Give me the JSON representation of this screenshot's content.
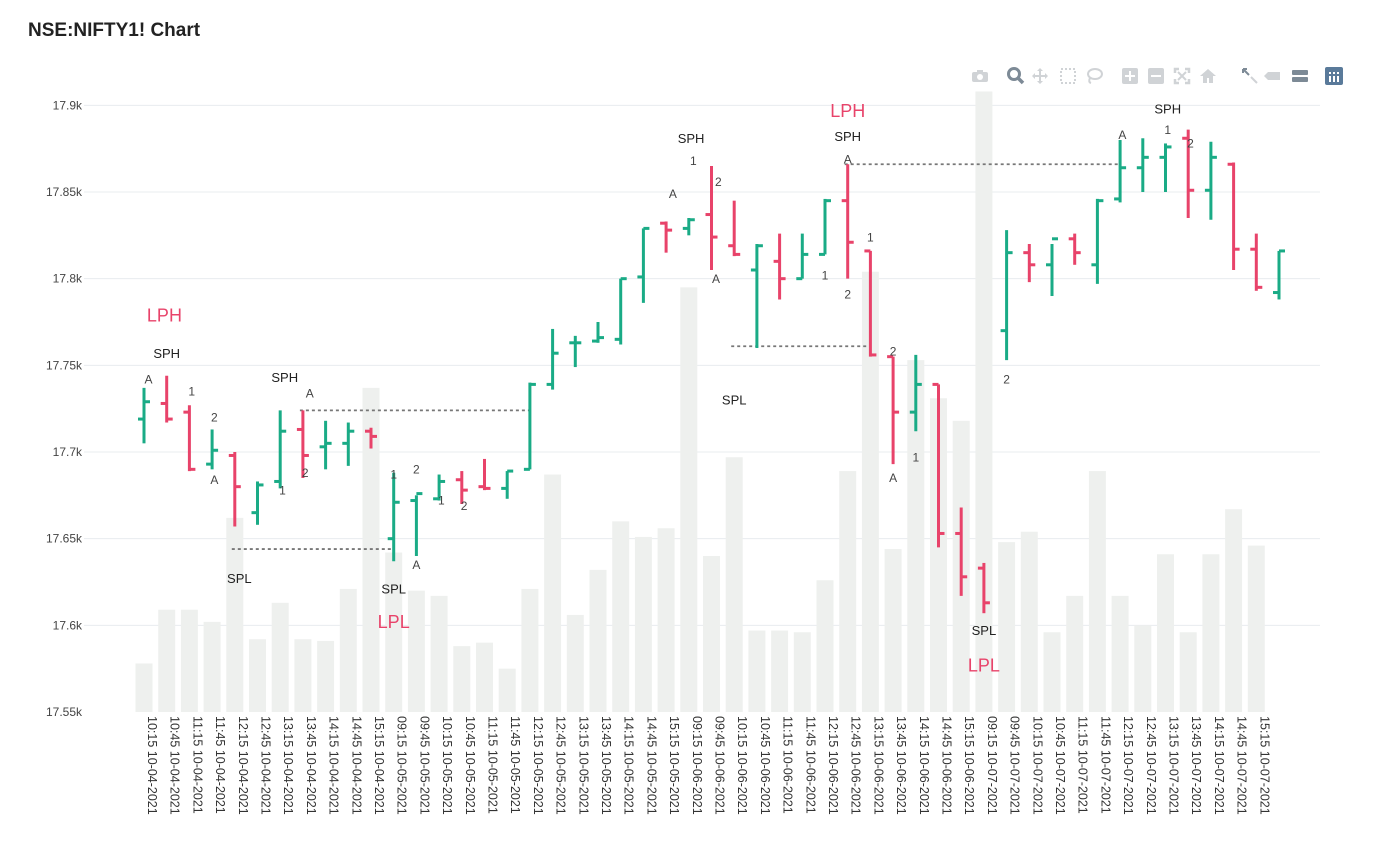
{
  "page": {
    "title": "NSE:NIFTY1! Chart"
  },
  "toolbar": {
    "buttons": [
      {
        "name": "camera-icon",
        "label": "Download plot as png"
      },
      {
        "name": "zoom-icon",
        "label": "Zoom"
      },
      {
        "name": "pan-icon",
        "label": "Pan"
      },
      {
        "name": "box-select-icon",
        "label": "Box Select"
      },
      {
        "name": "lasso-select-icon",
        "label": "Lasso Select"
      },
      {
        "name": "zoom-in-icon",
        "label": "Zoom in"
      },
      {
        "name": "zoom-out-icon",
        "label": "Zoom out"
      },
      {
        "name": "autoscale-icon",
        "label": "Autoscale"
      },
      {
        "name": "reset-axes-icon",
        "label": "Reset axes"
      },
      {
        "name": "spike-lines-icon",
        "label": "Toggle Spike Lines"
      },
      {
        "name": "hover-closest-icon",
        "label": "Show closest data on hover"
      },
      {
        "name": "hover-compare-icon",
        "label": "Compare data on hover"
      },
      {
        "name": "plotly-logo-icon",
        "label": "Produced with Plotly"
      }
    ]
  },
  "chart_data": {
    "type": "ohlc",
    "title": "NSE:NIFTY1! Chart",
    "ylim": [
      17550,
      17910
    ],
    "yticks": [
      17550,
      17600,
      17650,
      17700,
      17750,
      17800,
      17850,
      17900
    ],
    "ytick_labels": [
      "17.55k",
      "17.6k",
      "17.65k",
      "17.7k",
      "17.75k",
      "17.8k",
      "17.85k",
      "17.9k"
    ],
    "grid": true,
    "colors": {
      "up": "#1aab86",
      "down": "#e8436a",
      "volume": "#eef0ee",
      "grid": "#e8ecef",
      "marker_red": "#e8436a",
      "marker_text": "#222222",
      "ref_line": "#777777"
    },
    "categories": [
      "10:15 10-04-2021",
      "10:45 10-04-2021",
      "11:15 10-04-2021",
      "11:45 10-04-2021",
      "12:15 10-04-2021",
      "12:45 10-04-2021",
      "13:15 10-04-2021",
      "13:45 10-04-2021",
      "14:15 10-04-2021",
      "14:45 10-04-2021",
      "15:15 10-04-2021",
      "09:15 10-05-2021",
      "09:45 10-05-2021",
      "10:15 10-05-2021",
      "10:45 10-05-2021",
      "11:15 10-05-2021",
      "11:45 10-05-2021",
      "12:15 10-05-2021",
      "12:45 10-05-2021",
      "13:15 10-05-2021",
      "13:45 10-05-2021",
      "14:15 10-05-2021",
      "14:45 10-05-2021",
      "15:15 10-05-2021",
      "09:15 10-06-2021",
      "09:45 10-06-2021",
      "10:15 10-06-2021",
      "10:45 10-06-2021",
      "11:15 10-06-2021",
      "11:45 10-06-2021",
      "12:15 10-06-2021",
      "12:45 10-06-2021",
      "13:15 10-06-2021",
      "13:45 10-06-2021",
      "14:15 10-06-2021",
      "14:45 10-06-2021",
      "15:15 10-06-2021",
      "09:15 10-07-2021",
      "09:45 10-07-2021",
      "10:15 10-07-2021",
      "10:45 10-07-2021",
      "11:15 10-07-2021",
      "11:45 10-07-2021",
      "12:15 10-07-2021",
      "12:45 10-07-2021",
      "13:15 10-07-2021",
      "13:45 10-07-2021",
      "14:15 10-07-2021",
      "14:45 10-07-2021",
      "15:15 10-07-2021"
    ],
    "ohlc": [
      [
        17719,
        17737,
        17705,
        17729
      ],
      [
        17728,
        17744,
        17717,
        17719
      ],
      [
        17723,
        17727,
        17689,
        17690
      ],
      [
        17693,
        17713,
        17690,
        17701
      ],
      [
        17698,
        17700,
        17657,
        17680
      ],
      [
        17665,
        17683,
        17658,
        17681
      ],
      [
        17683,
        17724,
        17679,
        17712
      ],
      [
        17713,
        17724,
        17685,
        17698
      ],
      [
        17703,
        17718,
        17690,
        17705
      ],
      [
        17705,
        17717,
        17692,
        17712
      ],
      [
        17712,
        17714,
        17702,
        17709
      ],
      [
        17650,
        17688,
        17637,
        17671
      ],
      [
        17672,
        17675,
        17640,
        17676
      ],
      [
        17673,
        17687,
        17672,
        17683
      ],
      [
        17684,
        17689,
        17670,
        17678
      ],
      [
        17680,
        17696,
        17678,
        17679
      ],
      [
        17679,
        17689,
        17673,
        17689
      ],
      [
        17690,
        17740,
        17690,
        17739
      ],
      [
        17739,
        17771,
        17736,
        17757
      ],
      [
        17763,
        17767,
        17749,
        17763
      ],
      [
        17764,
        17775,
        17763,
        17766
      ],
      [
        17765,
        17800,
        17762,
        17800
      ],
      [
        17801,
        17829,
        17786,
        17829
      ],
      [
        17832,
        17833,
        17815,
        17828
      ],
      [
        17829,
        17835,
        17825,
        17834
      ],
      [
        17837,
        17865,
        17805,
        17824
      ],
      [
        17819,
        17845,
        17813,
        17814
      ],
      [
        17805,
        17820,
        17760,
        17819
      ],
      [
        17810,
        17826,
        17788,
        17800
      ],
      [
        17800,
        17826,
        17800,
        17814
      ],
      [
        17814,
        17846,
        17814,
        17845
      ],
      [
        17845,
        17866,
        17800,
        17821
      ],
      [
        17816,
        17816,
        17755,
        17756
      ],
      [
        17755,
        17755,
        17693,
        17723
      ],
      [
        17723,
        17756,
        17712,
        17739
      ],
      [
        17739,
        17739,
        17645,
        17653
      ],
      [
        17653,
        17668,
        17617,
        17628
      ],
      [
        17633,
        17636,
        17607,
        17613
      ],
      [
        17770,
        17828,
        17753,
        17815
      ],
      [
        17815,
        17820,
        17798,
        17808
      ],
      [
        17808,
        17820,
        17790,
        17823
      ],
      [
        17823,
        17826,
        17808,
        17815
      ],
      [
        17808,
        17846,
        17797,
        17845
      ],
      [
        17846,
        17880,
        17844,
        17864
      ],
      [
        17864,
        17881,
        17850,
        17870
      ],
      [
        17870,
        17878,
        17850,
        17876
      ],
      [
        17881,
        17886,
        17835,
        17851
      ],
      [
        17851,
        17879,
        17834,
        17870
      ],
      [
        17866,
        17867,
        17805,
        17817
      ],
      [
        17817,
        17826,
        17793,
        17795
      ],
      [
        17792,
        17816,
        17788,
        17816
      ]
    ],
    "volume": [
      17578,
      17609,
      17609,
      17602,
      17662,
      17592,
      17613,
      17592,
      17591,
      17621,
      17737,
      17642,
      17620,
      17617,
      17588,
      17590,
      17575,
      17621,
      17687,
      17606,
      17632,
      17660,
      17651,
      17656,
      17795,
      17640,
      17697,
      17597,
      17597,
      17596,
      17626,
      17689,
      17804,
      17644,
      17753,
      17731,
      17718,
      17908,
      17648,
      17654,
      17596,
      17617,
      17689,
      17617,
      17600,
      17641,
      17596,
      17641,
      17667,
      17646
    ],
    "annotations": [
      {
        "text": "LPH",
        "i": 0.9,
        "y": 17779,
        "color": "red",
        "size": "large"
      },
      {
        "text": "SPH",
        "i": 1.0,
        "y": 17757,
        "color": "dark"
      },
      {
        "text": "A",
        "i": 0.2,
        "y": 17742,
        "color": "dark",
        "size": "small"
      },
      {
        "text": "1",
        "i": 2.1,
        "y": 17735,
        "color": "dark",
        "size": "small"
      },
      {
        "text": "2",
        "i": 3.1,
        "y": 17720,
        "color": "dark",
        "size": "small"
      },
      {
        "text": "A",
        "i": 3.1,
        "y": 17684,
        "color": "dark",
        "size": "small"
      },
      {
        "text": "SPL",
        "i": 4.2,
        "y": 17627,
        "color": "dark"
      },
      {
        "text": "SPH",
        "i": 6.2,
        "y": 17743,
        "color": "dark"
      },
      {
        "text": "A",
        "i": 7.3,
        "y": 17734,
        "color": "dark",
        "size": "small"
      },
      {
        "text": "1",
        "i": 6.1,
        "y": 17678,
        "color": "dark",
        "size": "small"
      },
      {
        "text": "2",
        "i": 7.1,
        "y": 17688,
        "color": "dark",
        "size": "small"
      },
      {
        "text": "1",
        "i": 11.0,
        "y": 17687,
        "color": "dark",
        "size": "small"
      },
      {
        "text": "2",
        "i": 12.0,
        "y": 17690,
        "color": "dark",
        "size": "small"
      },
      {
        "text": "A",
        "i": 12.0,
        "y": 17635,
        "color": "dark",
        "size": "small"
      },
      {
        "text": "SPL",
        "i": 11.0,
        "y": 17621,
        "color": "dark"
      },
      {
        "text": "LPL",
        "i": 11.0,
        "y": 17602,
        "color": "red",
        "size": "large"
      },
      {
        "text": "1",
        "i": 13.1,
        "y": 17672,
        "color": "dark",
        "size": "small"
      },
      {
        "text": "2",
        "i": 14.1,
        "y": 17669,
        "color": "dark",
        "size": "small"
      },
      {
        "text": "A",
        "i": 23.3,
        "y": 17849,
        "color": "dark",
        "size": "small"
      },
      {
        "text": "SPH",
        "i": 24.1,
        "y": 17881,
        "color": "dark"
      },
      {
        "text": "1",
        "i": 24.2,
        "y": 17868,
        "color": "dark",
        "size": "small"
      },
      {
        "text": "2",
        "i": 25.3,
        "y": 17856,
        "color": "dark",
        "size": "small"
      },
      {
        "text": "A",
        "i": 25.2,
        "y": 17800,
        "color": "dark",
        "size": "small"
      },
      {
        "text": "LPH",
        "i": 31.0,
        "y": 17897,
        "color": "red",
        "size": "large"
      },
      {
        "text": "SPH",
        "i": 31.0,
        "y": 17882,
        "color": "dark"
      },
      {
        "text": "A",
        "i": 31.0,
        "y": 17869,
        "color": "dark",
        "size": "small"
      },
      {
        "text": "1",
        "i": 32.0,
        "y": 17824,
        "color": "dark",
        "size": "small"
      },
      {
        "text": "2",
        "i": 31.0,
        "y": 17791,
        "color": "dark",
        "size": "small"
      },
      {
        "text": "1",
        "i": 30.0,
        "y": 17802,
        "color": "dark",
        "size": "small"
      },
      {
        "text": "SPL",
        "i": 26.0,
        "y": 17730,
        "color": "dark"
      },
      {
        "text": "2",
        "i": 33.0,
        "y": 17758,
        "color": "dark",
        "size": "small"
      },
      {
        "text": "A",
        "i": 33.0,
        "y": 17685,
        "color": "dark",
        "size": "small"
      },
      {
        "text": "1",
        "i": 34.0,
        "y": 17697,
        "color": "dark",
        "size": "small"
      },
      {
        "text": "SPL",
        "i": 37.0,
        "y": 17597,
        "color": "dark"
      },
      {
        "text": "LPL",
        "i": 37.0,
        "y": 17577,
        "color": "red",
        "size": "large"
      },
      {
        "text": "2",
        "i": 38.0,
        "y": 17742,
        "color": "dark",
        "size": "small"
      },
      {
        "text": "A",
        "i": 43.1,
        "y": 17883,
        "color": "dark",
        "size": "small"
      },
      {
        "text": "SPH",
        "i": 45.1,
        "y": 17898,
        "color": "dark"
      },
      {
        "text": "1",
        "i": 45.1,
        "y": 17886,
        "color": "dark",
        "size": "small"
      },
      {
        "text": "2",
        "i": 46.1,
        "y": 17878,
        "color": "dark",
        "size": "small"
      }
    ],
    "ref_lines": [
      {
        "i0": 4,
        "i1": 11,
        "y": 17644
      },
      {
        "i0": 7,
        "i1": 17,
        "y": 17724
      },
      {
        "i0": 26,
        "i1": 32,
        "y": 17761
      },
      {
        "i0": 31,
        "i1": 43,
        "y": 17866
      }
    ]
  }
}
